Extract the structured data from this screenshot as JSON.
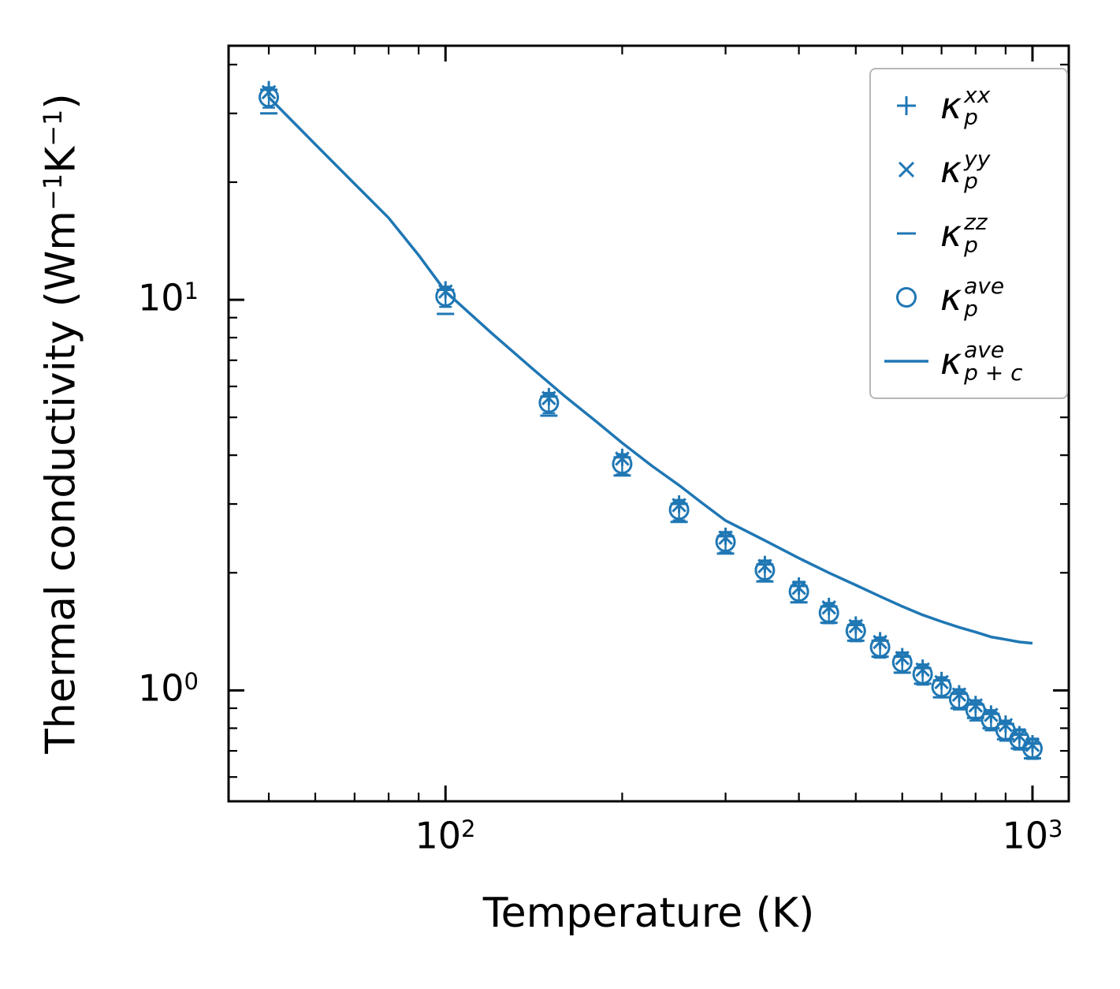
{
  "axes": {
    "xlabel": "Temperature (K)",
    "ylabel_parts": {
      "pre": "Thermal conductivity (Wm",
      "sup1": "−1",
      "mid": "K",
      "sup2": "−1",
      "post": ")"
    },
    "x_ticks": [
      {
        "base": "10",
        "exp": "2"
      },
      {
        "base": "10",
        "exp": "3"
      }
    ],
    "y_ticks": [
      {
        "base": "10",
        "exp": "1"
      },
      {
        "base": "10",
        "exp": "0"
      }
    ]
  },
  "legend": {
    "items": [
      {
        "marker": "plus",
        "kappa": "κ",
        "sup": "xx",
        "sub": "p"
      },
      {
        "marker": "x",
        "kappa": "κ",
        "sup": "yy",
        "sub": "p"
      },
      {
        "marker": "hline",
        "kappa": "κ",
        "sup": "zz",
        "sub": "p"
      },
      {
        "marker": "circle",
        "kappa": "κ",
        "sup": "ave",
        "sub": "p"
      },
      {
        "marker": "line",
        "kappa": "κ",
        "sup": "ave",
        "sub": "p + c"
      }
    ]
  },
  "chart_data": {
    "type": "scatter",
    "title": "",
    "xlabel": "Temperature (K)",
    "ylabel": "Thermal conductivity (Wm⁻¹K⁻¹)",
    "xscale": "log",
    "yscale": "log",
    "xlim": [
      42.7,
      1153
    ],
    "ylim": [
      0.52,
      44.7
    ],
    "grid": false,
    "legend_position": "upper right",
    "color": "#1f77b4",
    "x_major_ticks": [
      100,
      1000
    ],
    "x_minor_ticks": [
      50,
      60,
      70,
      80,
      90,
      200,
      300,
      400,
      500,
      600,
      700,
      800,
      900
    ],
    "y_major_ticks": [
      1,
      10
    ],
    "y_minor_ticks": [
      0.6,
      0.7,
      0.8,
      0.9,
      2,
      3,
      4,
      5,
      6,
      7,
      8,
      9,
      20,
      30,
      40
    ],
    "temperatures": [
      50,
      100,
      150,
      200,
      250,
      300,
      350,
      400,
      450,
      500,
      550,
      600,
      650,
      700,
      750,
      800,
      850,
      900,
      950,
      1000
    ],
    "series": [
      {
        "name": "kappa_p_xx",
        "marker": "plus",
        "values": [
          34.5,
          10.6,
          5.65,
          3.95,
          3.0,
          2.48,
          2.1,
          1.85,
          1.64,
          1.47,
          1.34,
          1.22,
          1.14,
          1.06,
          0.98,
          0.92,
          0.87,
          0.82,
          0.77,
          0.73
        ]
      },
      {
        "name": "kappa_p_yy",
        "marker": "x",
        "values": [
          34.0,
          10.5,
          5.6,
          3.92,
          2.98,
          2.46,
          2.08,
          1.83,
          1.63,
          1.46,
          1.33,
          1.21,
          1.13,
          1.05,
          0.975,
          0.915,
          0.865,
          0.815,
          0.765,
          0.725
        ]
      },
      {
        "name": "kappa_p_zz",
        "marker": "hline",
        "values": [
          30.0,
          9.2,
          5.05,
          3.55,
          2.7,
          2.24,
          1.9,
          1.68,
          1.49,
          1.34,
          1.22,
          1.11,
          1.04,
          0.96,
          0.9,
          0.85,
          0.8,
          0.75,
          0.71,
          0.67
        ]
      },
      {
        "name": "kappa_p_ave",
        "marker": "circle",
        "yerr_frac": 0.06,
        "values": [
          33.0,
          10.2,
          5.45,
          3.8,
          2.9,
          2.4,
          2.03,
          1.79,
          1.58,
          1.42,
          1.29,
          1.18,
          1.1,
          1.02,
          0.95,
          0.89,
          0.84,
          0.79,
          0.75,
          0.71
        ]
      }
    ],
    "line_series": {
      "name": "kappa_p_plus_c_ave",
      "x": [
        50,
        60,
        70,
        80,
        90,
        100,
        120,
        140,
        160,
        180,
        200,
        225,
        250,
        275,
        300,
        350,
        400,
        450,
        500,
        550,
        600,
        650,
        700,
        750,
        800,
        850,
        900,
        950,
        1000
      ],
      "values": [
        33.0,
        25.0,
        19.8,
        16.2,
        13.0,
        10.5,
        8.2,
        6.7,
        5.65,
        4.9,
        4.3,
        3.75,
        3.35,
        3.0,
        2.72,
        2.42,
        2.18,
        2.0,
        1.86,
        1.74,
        1.64,
        1.56,
        1.5,
        1.45,
        1.41,
        1.37,
        1.35,
        1.33,
        1.32
      ]
    }
  }
}
